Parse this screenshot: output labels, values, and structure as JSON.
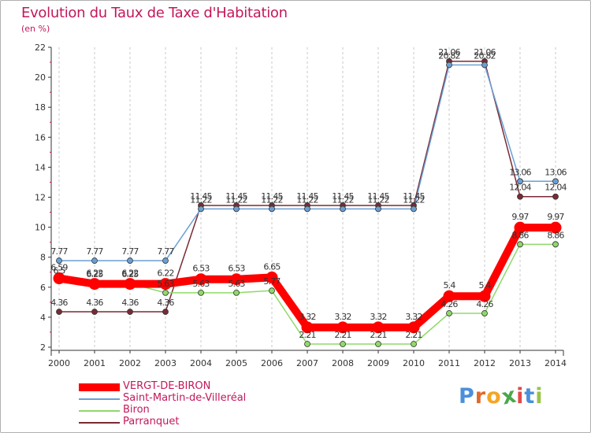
{
  "header": {
    "title": "Evolution du Taux de Taxe d'Habitation",
    "unit": "(en %)"
  },
  "logo": {
    "text": "Proxiti",
    "letters": [
      "P",
      "r",
      "o",
      "x",
      "i",
      "t",
      "i"
    ],
    "colors": [
      "#4a90d9",
      "#e06a2a",
      "#f5a623",
      "#4aa84a",
      "#e04a4a",
      "#4a90d9",
      "#9ac34a"
    ]
  },
  "chart_data": {
    "type": "line",
    "title": "Evolution du Taux de Taxe d'Habitation",
    "ylabel": "(en %)",
    "xlabel": "",
    "categories": [
      "2000",
      "2001",
      "2002",
      "2003",
      "2004",
      "2005",
      "2006",
      "2007",
      "2008",
      "2009",
      "2010",
      "2011",
      "2012",
      "2013",
      "2014"
    ],
    "ylim": [
      2,
      22
    ],
    "yticks": [
      2,
      4,
      6,
      8,
      10,
      12,
      14,
      16,
      18,
      20,
      22
    ],
    "grid": "vertical",
    "legend_position": "bottom-left",
    "series": [
      {
        "name": "VERGT-DE-BIRON",
        "color": "#ff0000",
        "style": "thick",
        "values": [
          6.59,
          6.22,
          6.22,
          6.22,
          6.53,
          6.53,
          6.65,
          3.32,
          3.32,
          3.32,
          3.32,
          5.4,
          5.4,
          9.97,
          9.97
        ],
        "labels": [
          "6.59",
          "6.22",
          "6.22",
          "6.22",
          "6.53",
          "6.53",
          "6.65",
          "3.32",
          "3.32",
          "3.32",
          "3.32",
          "5.4",
          "5.4",
          "9.97",
          "9.97"
        ]
      },
      {
        "name": "Saint-Martin-de-Villeréal",
        "color": "#6a9fd4",
        "style": "thin",
        "values": [
          7.77,
          7.77,
          7.77,
          7.77,
          11.22,
          11.22,
          11.22,
          11.22,
          11.22,
          11.22,
          11.22,
          20.82,
          20.82,
          13.06,
          13.06
        ],
        "labels": [
          "7.77",
          "7.77",
          "7.77",
          "7.77",
          "11.22",
          "11.22",
          "11.22",
          "11.22",
          "11.22",
          "11.22",
          "11.22",
          "20.82",
          "20.82",
          "13.06",
          "13.06"
        ]
      },
      {
        "name": "Biron",
        "color": "#8fd96a",
        "style": "thin",
        "values": [
          6.5,
          6.25,
          6.25,
          5.63,
          5.63,
          5.63,
          5.77,
          2.21,
          2.21,
          2.21,
          2.21,
          4.26,
          4.26,
          8.86,
          8.86
        ],
        "labels": [
          "6.5",
          "6.25",
          "6.25",
          "5.63",
          "5.63",
          "5.63",
          "5.77",
          "2.21",
          "2.21",
          "2.21",
          "2.21",
          "4.26",
          "4.26",
          "8.86",
          "8.86"
        ]
      },
      {
        "name": "Parranquet",
        "color": "#7a2a34",
        "style": "thin",
        "values": [
          4.36,
          4.36,
          4.36,
          4.36,
          11.45,
          11.45,
          11.45,
          11.45,
          11.45,
          11.45,
          11.45,
          21.06,
          21.06,
          12.04,
          12.04
        ],
        "labels": [
          "4.36",
          "4.36",
          "4.36",
          "4.36",
          "11.45",
          "11.45",
          "11.45",
          "11.45",
          "11.45",
          "11.45",
          "11.45",
          "21.06",
          "21.06",
          "12.04",
          "12.04"
        ]
      }
    ]
  }
}
